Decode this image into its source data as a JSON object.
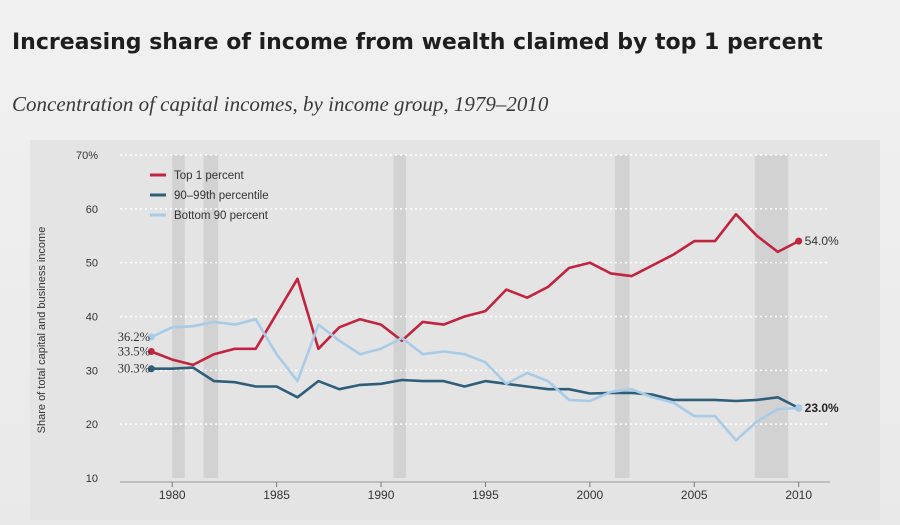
{
  "title": "Increasing share of income from wealth claimed by top 1 percent",
  "subtitle": "Concentration of capital incomes, by income group, 1979–2010",
  "colors": {
    "top1": "#c2243f",
    "p90_99": "#2f5e7a",
    "bottom90": "#a8cbe8",
    "recession": "#cfcfcf",
    "grid": "#ffffff"
  },
  "chart_data": {
    "type": "line",
    "title": "Increasing share of income from wealth claimed by top 1 percent",
    "subtitle": "Concentration of capital incomes, by income group, 1979–2010",
    "ylabel": "Share of total capital and business income",
    "xlabel": "",
    "xlim": [
      1977.5,
      2011.5
    ],
    "ylim": [
      10,
      70
    ],
    "x_ticks": [
      "1980",
      "1985",
      "1990",
      "1995",
      "2000",
      "2005",
      "2010"
    ],
    "y_ticks": [
      "10",
      "20",
      "30",
      "40",
      "50",
      "60",
      "70%"
    ],
    "grid": "dotted horizontal",
    "legend_position": "top-left",
    "recession_bands": [
      [
        1980.0,
        1980.6
      ],
      [
        1981.5,
        1982.2
      ],
      [
        1990.6,
        1991.2
      ],
      [
        2001.2,
        2001.9
      ],
      [
        2007.9,
        2009.5
      ]
    ],
    "x": [
      1979,
      1980,
      1981,
      1982,
      1983,
      1984,
      1985,
      1986,
      1987,
      1988,
      1989,
      1990,
      1991,
      1992,
      1993,
      1994,
      1995,
      1996,
      1997,
      1998,
      1999,
      2000,
      2001,
      2002,
      2003,
      2004,
      2005,
      2006,
      2007,
      2008,
      2009,
      2010
    ],
    "series": [
      {
        "name": "Top 1 percent",
        "color_key": "top1",
        "values": [
          33.5,
          32.0,
          31.0,
          33.0,
          34.0,
          34.0,
          40.5,
          47.0,
          34.0,
          38.0,
          39.5,
          38.5,
          35.5,
          39.0,
          38.5,
          40.0,
          41.0,
          45.0,
          43.5,
          45.5,
          49.0,
          50.0,
          48.0,
          47.5,
          49.5,
          51.5,
          54.0,
          54.0,
          59.0,
          55.0,
          52.0,
          54.0
        ],
        "end_label": "54.0%",
        "start_label": "33.5%"
      },
      {
        "name": "90–99th percentile",
        "color_key": "p90_99",
        "values": [
          30.3,
          30.3,
          30.5,
          28.0,
          27.8,
          27.0,
          27.0,
          25.0,
          28.0,
          26.5,
          27.3,
          27.5,
          28.2,
          28.0,
          28.0,
          27.0,
          28.0,
          27.5,
          27.0,
          26.5,
          26.5,
          25.7,
          25.8,
          25.8,
          25.5,
          24.5,
          24.5,
          24.5,
          24.3,
          24.5,
          25.0,
          23.0
        ],
        "end_label": "23.0%",
        "start_label": "30.3%"
      },
      {
        "name": "Bottom 90 percent",
        "color_key": "bottom90",
        "values": [
          36.2,
          38.0,
          38.2,
          39.0,
          38.5,
          39.5,
          33.0,
          28.0,
          38.5,
          35.5,
          33.0,
          34.0,
          36.0,
          33.0,
          33.5,
          33.0,
          31.5,
          27.5,
          29.5,
          28.0,
          24.5,
          24.3,
          26.0,
          26.5,
          25.0,
          24.0,
          21.5,
          21.5,
          17.0,
          20.5,
          22.8,
          23.0
        ],
        "end_label": "23.0%",
        "start_label": "36.2%"
      }
    ]
  }
}
